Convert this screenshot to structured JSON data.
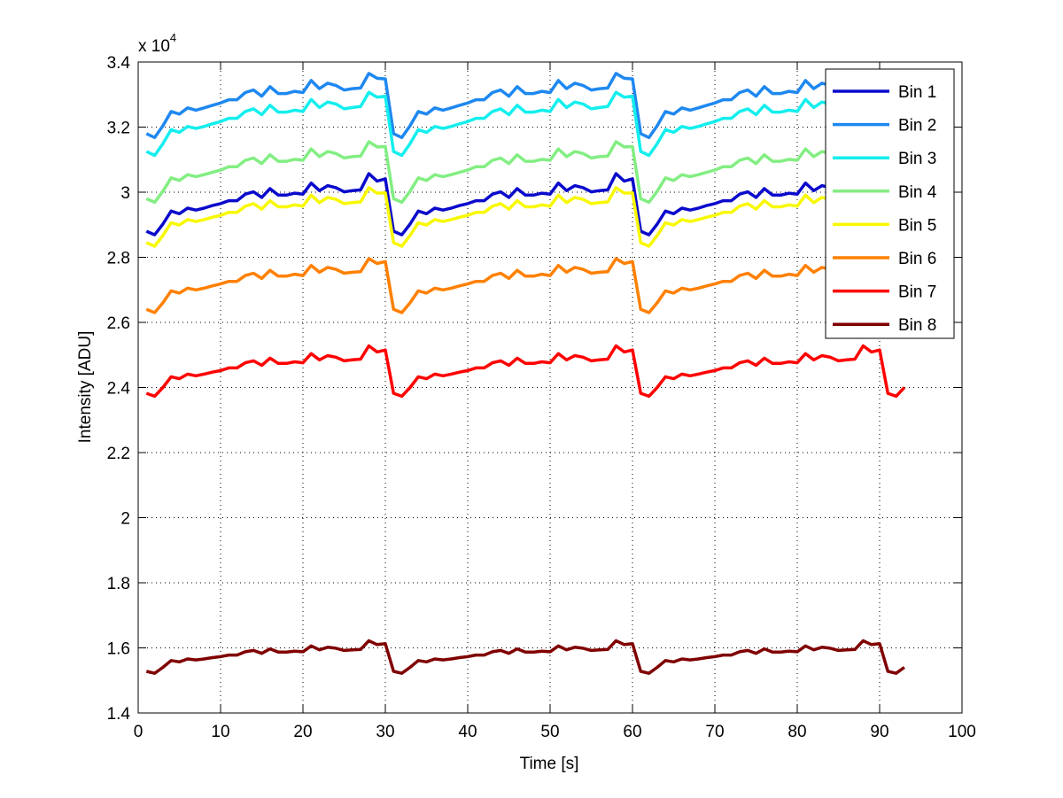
{
  "chart_data": {
    "type": "line",
    "title": "",
    "xlabel": "Time [s]",
    "ylabel": "Intensity [ADU]",
    "y_multiplier": "x 10",
    "y_multiplier_exp": "4",
    "xlim": [
      0,
      100
    ],
    "ylim": [
      14000,
      34000
    ],
    "xticks": [
      0,
      10,
      20,
      30,
      40,
      50,
      60,
      70,
      80,
      90,
      100
    ],
    "xtick_labels": [
      "0",
      "10",
      "20",
      "30",
      "40",
      "50",
      "60",
      "70",
      "80",
      "90",
      "100"
    ],
    "yticks": [
      14000,
      16000,
      18000,
      20000,
      22000,
      24000,
      26000,
      28000,
      30000,
      32000,
      34000
    ],
    "ytick_labels": [
      "1.4",
      "1.6",
      "1.8",
      "2",
      "2.2",
      "2.4",
      "2.6",
      "2.8",
      "3",
      "3.2",
      "3.4"
    ],
    "grid": true,
    "legend_position": "top-right",
    "x_start": 1,
    "series": [
      {
        "name": "Bin 1",
        "color": "#0a0acc",
        "values": [
          28800,
          28690,
          29020,
          29420,
          29340,
          29510,
          29450,
          29510,
          29590,
          29650,
          29740,
          29740,
          29940,
          30010,
          29840,
          30110,
          29910,
          29910,
          29970,
          29940,
          30280,
          30050,
          30200,
          30140,
          30010,
          30050,
          30070,
          30570,
          30340,
          30410,
          28800,
          28690,
          29020,
          29420,
          29340,
          29510,
          29450,
          29510,
          29590,
          29650,
          29740,
          29740,
          29940,
          30010,
          29840,
          30110,
          29910,
          29910,
          29970,
          29940,
          30280,
          30050,
          30200,
          30140,
          30010,
          30050,
          30070,
          30570,
          30340,
          30410,
          28800,
          28690,
          29020,
          29420,
          29340,
          29510,
          29450,
          29510,
          29590,
          29650,
          29740,
          29740,
          29940,
          30010,
          29840,
          30110,
          29910,
          29910,
          29970,
          29940,
          30280,
          30050,
          30200,
          30140,
          30010,
          30050,
          30070,
          30570,
          30340,
          30410,
          28800,
          28690,
          29020
        ]
      },
      {
        "name": "Bin 2",
        "color": "#1e88f0",
        "values": [
          31800,
          31680,
          32040,
          32480,
          32400,
          32590,
          32520,
          32590,
          32670,
          32740,
          32840,
          32840,
          33060,
          33140,
          32950,
          33240,
          33030,
          33030,
          33100,
          33060,
          33430,
          33180,
          33350,
          33280,
          33140,
          33180,
          33200,
          33650,
          33500,
          33480,
          31800,
          31680,
          32040,
          32480,
          32400,
          32590,
          32520,
          32590,
          32670,
          32740,
          32840,
          32840,
          33060,
          33140,
          32950,
          33240,
          33030,
          33030,
          33100,
          33060,
          33430,
          33180,
          33350,
          33280,
          33140,
          33180,
          33200,
          33650,
          33500,
          33480,
          31800,
          31680,
          32040,
          32480,
          32400,
          32590,
          32520,
          32590,
          32670,
          32740,
          32840,
          32840,
          33060,
          33140,
          32950,
          33240,
          33030,
          33030,
          33100,
          33060,
          33430,
          33180,
          33350,
          33280,
          33140,
          33180,
          33200,
          33650,
          33500,
          33480,
          31800,
          31680,
          32040
        ]
      },
      {
        "name": "Bin 3",
        "color": "#14eeee",
        "values": [
          31250,
          31130,
          31490,
          31920,
          31840,
          32020,
          31960,
          32020,
          32100,
          32170,
          32270,
          32270,
          32480,
          32560,
          32380,
          32670,
          32460,
          32460,
          32520,
          32480,
          32850,
          32600,
          32770,
          32710,
          32560,
          32600,
          32630,
          33070,
          32920,
          32950,
          31250,
          31130,
          31490,
          31920,
          31840,
          32020,
          31960,
          32020,
          32100,
          32170,
          32270,
          32270,
          32480,
          32560,
          32380,
          32670,
          32460,
          32460,
          32520,
          32480,
          32850,
          32600,
          32770,
          32710,
          32560,
          32600,
          32630,
          33070,
          32920,
          32950,
          31250,
          31130,
          31490,
          31920,
          31840,
          32020,
          31960,
          32020,
          32100,
          32170,
          32270,
          32270,
          32480,
          32560,
          32380,
          32670,
          32460,
          32460,
          32520,
          32480,
          32850,
          32600,
          32770,
          32710,
          32560,
          32600,
          32630,
          33070,
          32920,
          32950,
          31250,
          31130,
          31490
        ]
      },
      {
        "name": "Bin 4",
        "color": "#82ee82",
        "values": [
          29800,
          29690,
          30030,
          30440,
          30360,
          30540,
          30480,
          30540,
          30610,
          30680,
          30780,
          30780,
          30980,
          31050,
          30880,
          31150,
          30950,
          30950,
          31010,
          30980,
          31330,
          31090,
          31250,
          31190,
          31050,
          31090,
          31110,
          31550,
          31390,
          31400,
          29800,
          29690,
          30030,
          30440,
          30360,
          30540,
          30480,
          30540,
          30610,
          30680,
          30780,
          30780,
          30980,
          31050,
          30880,
          31150,
          30950,
          30950,
          31010,
          30980,
          31330,
          31090,
          31250,
          31190,
          31050,
          31090,
          31110,
          31550,
          31390,
          31400,
          29800,
          29690,
          30030,
          30440,
          30360,
          30540,
          30480,
          30540,
          30610,
          30680,
          30780,
          30780,
          30980,
          31050,
          30880,
          31150,
          30950,
          30950,
          31010,
          30980,
          31330,
          31090,
          31250,
          31190,
          31050,
          31090,
          31110,
          31550,
          31390,
          31400,
          29800,
          29690,
          30030
        ]
      },
      {
        "name": "Bin 5",
        "color": "#f8f800",
        "values": [
          28450,
          28340,
          28670,
          29060,
          28990,
          29160,
          29100,
          29160,
          29230,
          29290,
          29380,
          29380,
          29570,
          29650,
          29480,
          29740,
          29550,
          29550,
          29610,
          29570,
          29910,
          29680,
          29840,
          29780,
          29650,
          29680,
          29700,
          30140,
          29970,
          29980,
          28450,
          28340,
          28670,
          29060,
          28990,
          29160,
          29100,
          29160,
          29230,
          29290,
          29380,
          29380,
          29570,
          29650,
          29480,
          29740,
          29550,
          29550,
          29610,
          29570,
          29910,
          29680,
          29840,
          29780,
          29650,
          29680,
          29700,
          30140,
          29970,
          29980,
          28450,
          28340,
          28670,
          29060,
          28990,
          29160,
          29100,
          29160,
          29230,
          29290,
          29380,
          29380,
          29570,
          29650,
          29480,
          29740,
          29550,
          29550,
          29610,
          29570,
          29910,
          29680,
          29840,
          29780,
          29650,
          29680,
          29700,
          30140,
          29970,
          29980,
          28450,
          28340,
          28670
        ]
      },
      {
        "name": "Bin 6",
        "color": "#ff8000",
        "values": [
          26400,
          26300,
          26600,
          26970,
          26900,
          27050,
          27000,
          27050,
          27120,
          27180,
          27260,
          27260,
          27440,
          27510,
          27350,
          27600,
          27420,
          27420,
          27480,
          27440,
          27750,
          27540,
          27690,
          27630,
          27510,
          27540,
          27560,
          27960,
          27810,
          27870,
          26400,
          26300,
          26600,
          26970,
          26900,
          27050,
          27000,
          27050,
          27120,
          27180,
          27260,
          27260,
          27440,
          27510,
          27350,
          27600,
          27420,
          27420,
          27480,
          27440,
          27750,
          27540,
          27690,
          27630,
          27510,
          27540,
          27560,
          27960,
          27810,
          27870,
          26400,
          26300,
          26600,
          26970,
          26900,
          27050,
          27000,
          27050,
          27120,
          27180,
          27260,
          27260,
          27440,
          27510,
          27350,
          27600,
          27420,
          27420,
          27480,
          27440,
          27750,
          27540,
          27690,
          27630,
          27510,
          27540,
          27560,
          27960,
          27810,
          27870,
          26400,
          26300,
          26600
        ]
      },
      {
        "name": "Bin 7",
        "color": "#ff0000",
        "values": [
          23820,
          23730,
          24000,
          24330,
          24270,
          24410,
          24360,
          24410,
          24470,
          24520,
          24600,
          24600,
          24760,
          24820,
          24680,
          24900,
          24740,
          24740,
          24790,
          24760,
          25040,
          24850,
          24980,
          24930,
          24820,
          24850,
          24870,
          25280,
          25090,
          25150,
          23820,
          23730,
          24000,
          24330,
          24270,
          24410,
          24360,
          24410,
          24470,
          24520,
          24600,
          24600,
          24760,
          24820,
          24680,
          24900,
          24740,
          24740,
          24790,
          24760,
          25040,
          24850,
          24980,
          24930,
          24820,
          24850,
          24870,
          25280,
          25090,
          25150,
          23820,
          23730,
          24000,
          24330,
          24270,
          24410,
          24360,
          24410,
          24470,
          24520,
          24600,
          24600,
          24760,
          24820,
          24680,
          24900,
          24740,
          24740,
          24790,
          24760,
          25040,
          24850,
          24980,
          24930,
          24820,
          24850,
          24870,
          25280,
          25090,
          25150,
          23820,
          23730,
          24000
        ]
      },
      {
        "name": "Bin 8",
        "color": "#800000",
        "values": [
          15280,
          15220,
          15400,
          15610,
          15570,
          15660,
          15630,
          15660,
          15700,
          15730,
          15780,
          15780,
          15880,
          15920,
          15830,
          15970,
          15870,
          15870,
          15900,
          15880,
          16060,
          15940,
          16020,
          15990,
          15920,
          15940,
          15950,
          16220,
          16100,
          16130,
          15280,
          15220,
          15400,
          15610,
          15570,
          15660,
          15630,
          15660,
          15700,
          15730,
          15780,
          15780,
          15880,
          15920,
          15830,
          15970,
          15870,
          15870,
          15900,
          15880,
          16060,
          15940,
          16020,
          15990,
          15920,
          15940,
          15950,
          16220,
          16100,
          16130,
          15280,
          15220,
          15400,
          15610,
          15570,
          15660,
          15630,
          15660,
          15700,
          15730,
          15780,
          15780,
          15880,
          15920,
          15830,
          15970,
          15870,
          15870,
          15900,
          15880,
          16060,
          15940,
          16020,
          15990,
          15920,
          15940,
          15950,
          16220,
          16100,
          16130,
          15280,
          15220,
          15400
        ]
      }
    ]
  }
}
